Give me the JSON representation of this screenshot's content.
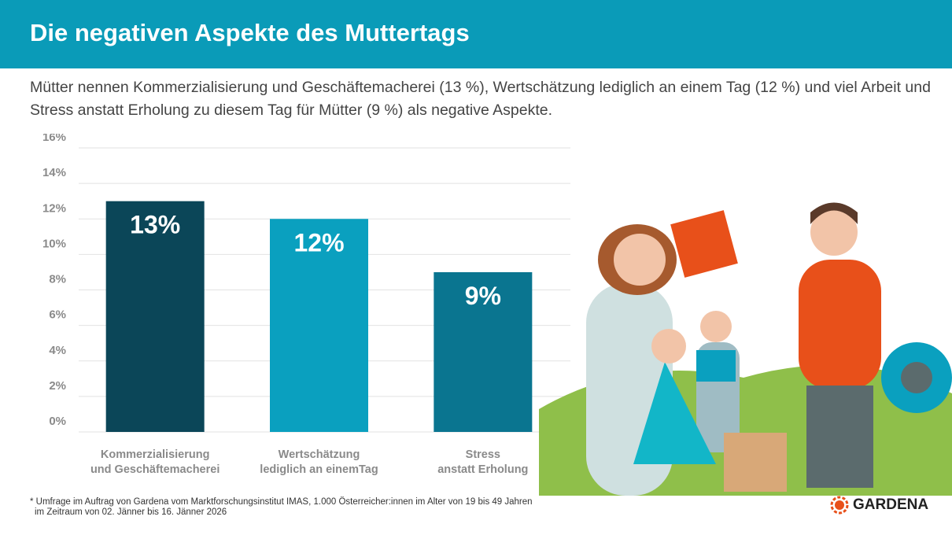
{
  "header": {
    "title": "Die negativen Aspekte des Muttertags"
  },
  "subtitle": "Mütter nennen Kommerzialisierung und Geschäftemacherei (13 %), Wertschätzung lediglich an einem Tag (12 %) und viel Arbeit und Stress anstatt Erholung zu diesem Tag für Mütter (9 %) als negative Aspekte.",
  "chart_data": {
    "type": "bar",
    "categories": [
      "Kommerzialisierung\nund Geschäftemacherei",
      "Wertschätzung\nlediglich an einemTag",
      "Stress\nanstatt Erholung"
    ],
    "values": [
      13,
      12,
      9
    ],
    "data_labels": [
      "13%",
      "12%",
      "9%"
    ],
    "colors": [
      "#0b4658",
      "#0aa0bf",
      "#0a7590"
    ],
    "yticks": [
      "0%",
      "2%",
      "4%",
      "6%",
      "8%",
      "10%",
      "12%",
      "14%",
      "16%"
    ],
    "ylim": [
      0,
      16
    ],
    "grid": true
  },
  "footnote": {
    "line1": "* Umfrage im Auftrag von Gardena vom Marktforschungsinstitut IMAS, 1.000 Österreicher:innen im Alter von 19 bis 49 Jahren",
    "line2": "im Zeitraum von 02. Jänner bis 16. Jänner 2026"
  },
  "logo": {
    "text": "GARDENA",
    "color": "#e8501a"
  }
}
